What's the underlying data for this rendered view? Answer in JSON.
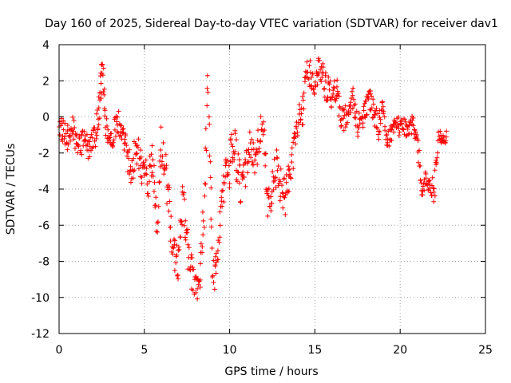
{
  "chart_data": {
    "type": "scatter",
    "title": "Day 160 of 2025, Sidereal Day-to-day VTEC variation (SDTVAR) for receiver dav1",
    "xlabel": "GPS time / hours",
    "ylabel": "SDTVAR / TECUs",
    "xlim": [
      0,
      25
    ],
    "ylim": [
      -12,
      4
    ],
    "x_ticks": [
      0,
      5,
      10,
      15,
      20,
      25
    ],
    "y_ticks": [
      -12,
      -10,
      -8,
      -6,
      -4,
      -2,
      0,
      2,
      4
    ],
    "x_tick_labels": [
      "0",
      "5",
      "10",
      "15",
      "20",
      "25"
    ],
    "y_tick_labels": [
      "-12",
      "-10",
      "-8",
      "-6",
      "-4",
      "-2",
      "0",
      "2",
      "4"
    ],
    "grid": true,
    "marker": "+",
    "color": "#ff0000",
    "series": [
      {
        "name": "SDTVAR",
        "x": [
          0.0,
          0.25,
          0.5,
          0.75,
          1.0,
          1.25,
          1.5,
          1.75,
          2.0,
          2.25,
          2.4,
          2.55,
          2.75,
          3.0,
          3.25,
          3.5,
          3.75,
          4.0,
          4.25,
          4.5,
          4.75,
          5.0,
          5.25,
          5.5,
          5.75,
          6.0,
          6.25,
          6.5,
          6.75,
          7.0,
          7.25,
          7.5,
          7.75,
          8.0,
          8.25,
          8.5,
          8.75,
          9.0,
          9.25,
          9.5,
          9.75,
          10.0,
          10.25,
          10.5,
          10.75,
          11.0,
          11.25,
          11.5,
          11.75,
          12.0,
          12.25,
          12.5,
          12.75,
          13.0,
          13.25,
          13.5,
          13.75,
          14.0,
          14.25,
          14.5,
          14.75,
          15.0,
          15.25,
          15.5,
          15.75,
          16.0,
          16.25,
          16.5,
          16.75,
          17.0,
          17.25,
          17.5,
          17.75,
          18.0,
          18.25,
          18.5,
          18.75,
          19.0,
          19.25,
          19.5,
          19.75,
          20.0,
          20.25,
          20.5,
          20.75,
          21.0,
          21.25,
          21.5,
          21.75,
          22.0,
          22.25,
          22.5,
          22.75
        ],
        "y": [
          -0.5,
          -1.0,
          -1.2,
          -0.5,
          -1.4,
          -1.8,
          -1.0,
          -2.0,
          -1.2,
          -0.5,
          1.5,
          2.5,
          -0.5,
          -1.5,
          -0.8,
          -0.3,
          -1.2,
          -2.0,
          -3.2,
          -1.5,
          -2.5,
          -3.0,
          -4.0,
          -2.2,
          -6.0,
          -1.5,
          -3.0,
          -5.5,
          -7.5,
          -8.2,
          -4.5,
          -7.0,
          -8.5,
          -9.5,
          -9.2,
          -5.0,
          2.0,
          -9.0,
          -8.3,
          -5.0,
          -3.5,
          -2.8,
          -1.0,
          -3.2,
          -4.0,
          -2.5,
          -1.5,
          -3.0,
          -1.0,
          -0.5,
          -5.0,
          -4.0,
          -2.8,
          -3.8,
          -4.5,
          -3.0,
          -2.0,
          -0.5,
          0.3,
          2.2,
          2.5,
          1.5,
          2.8,
          2.0,
          1.5,
          1.0,
          1.8,
          0.2,
          -0.2,
          0.5,
          1.0,
          -0.5,
          -0.2,
          0.5,
          1.0,
          0.0,
          -0.5,
          0.5,
          -1.5,
          -0.8,
          -0.3,
          -0.6,
          -0.5,
          -0.8,
          -0.3,
          -1.2,
          -3.9,
          -3.5,
          -3.9,
          -4.0,
          -1.0,
          -1.3,
          -1.0
        ],
        "spread": [
          0.6,
          0.8,
          0.8,
          0.8,
          0.6,
          0.7,
          0.5,
          0.6,
          0.8,
          0.9,
          1.0,
          0.8,
          0.8,
          0.6,
          0.7,
          0.7,
          0.6,
          0.8,
          0.8,
          1.0,
          0.9,
          1.0,
          1.2,
          1.0,
          1.0,
          1.0,
          1.0,
          1.2,
          1.2,
          0.8,
          1.0,
          1.0,
          1.0,
          0.8,
          0.6,
          1.2,
          1.0,
          1.0,
          0.8,
          1.2,
          1.0,
          1.2,
          1.2,
          1.2,
          1.0,
          1.0,
          1.0,
          1.0,
          1.0,
          0.6,
          1.0,
          1.2,
          1.0,
          1.0,
          1.0,
          1.0,
          1.0,
          0.8,
          1.0,
          0.8,
          0.8,
          0.6,
          0.8,
          0.8,
          0.8,
          0.8,
          0.8,
          0.8,
          0.7,
          0.6,
          0.6,
          0.6,
          0.6,
          0.6,
          0.6,
          0.6,
          0.8,
          0.6,
          0.6,
          0.5,
          0.5,
          0.5,
          0.5,
          0.5,
          0.5,
          0.6,
          0.5,
          0.5,
          0.5,
          0.8,
          0.3,
          0.3,
          0.3
        ]
      }
    ]
  }
}
